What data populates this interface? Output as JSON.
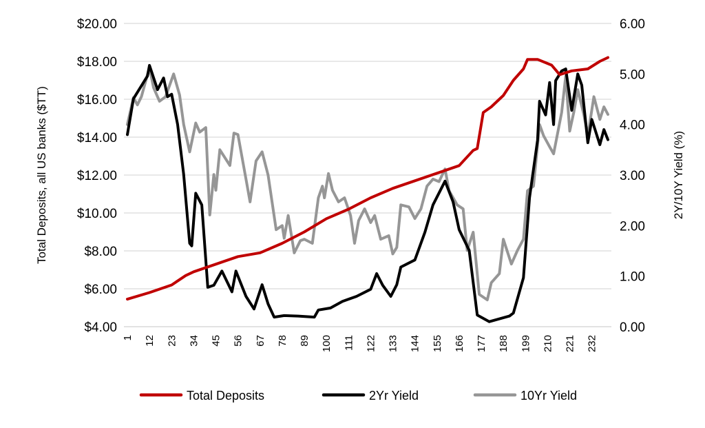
{
  "chart_data": {
    "type": "line",
    "title": "",
    "xlabel": "",
    "ylabel_left": "Total Deposits, all US banks ($TT)",
    "ylabel_right": "2Y/10Y Yield (%)",
    "x_ticks": [
      "1",
      "12",
      "23",
      "34",
      "45",
      "56",
      "67",
      "78",
      "89",
      "100",
      "111",
      "122",
      "133",
      "144",
      "155",
      "166",
      "177",
      "188",
      "199",
      "210",
      "221",
      "232"
    ],
    "xlim": [
      1,
      240
    ],
    "ylim_left": [
      4,
      20
    ],
    "ylim_right": [
      0,
      6
    ],
    "y_ticks_left": [
      "$4.00",
      "$6.00",
      "$8.00",
      "$10.00",
      "$12.00",
      "$14.00",
      "$16.00",
      "$18.00",
      "$20.00"
    ],
    "y_ticks_right": [
      "0.00",
      "1.00",
      "2.00",
      "3.00",
      "4.00",
      "5.00",
      "6.00"
    ],
    "grid": true,
    "legend_position": "bottom",
    "series": [
      {
        "name": "Total Deposits",
        "axis": "left",
        "color": "#C00000",
        "points": [
          [
            1,
            5.45
          ],
          [
            12,
            5.8
          ],
          [
            23,
            6.2
          ],
          [
            30,
            6.7
          ],
          [
            34,
            6.9
          ],
          [
            45,
            7.3
          ],
          [
            56,
            7.7
          ],
          [
            67,
            7.9
          ],
          [
            78,
            8.4
          ],
          [
            89,
            9.0
          ],
          [
            100,
            9.7
          ],
          [
            111,
            10.2
          ],
          [
            122,
            10.8
          ],
          [
            133,
            11.3
          ],
          [
            144,
            11.7
          ],
          [
            155,
            12.1
          ],
          [
            166,
            12.5
          ],
          [
            173,
            13.3
          ],
          [
            175,
            13.4
          ],
          [
            178,
            15.3
          ],
          [
            182,
            15.6
          ],
          [
            188,
            16.2
          ],
          [
            193,
            17.0
          ],
          [
            198,
            17.6
          ],
          [
            200,
            18.1
          ],
          [
            205,
            18.1
          ],
          [
            212,
            17.8
          ],
          [
            216,
            17.3
          ],
          [
            222,
            17.5
          ],
          [
            230,
            17.6
          ],
          [
            236,
            18.0
          ],
          [
            240,
            18.2
          ]
        ]
      },
      {
        "name": "2Yr Yield",
        "axis": "right",
        "color": "#000000",
        "points": [
          [
            1,
            3.8
          ],
          [
            4,
            4.51
          ],
          [
            11,
            4.96
          ],
          [
            12,
            5.17
          ],
          [
            16,
            4.69
          ],
          [
            19,
            4.92
          ],
          [
            21,
            4.55
          ],
          [
            23,
            4.6
          ],
          [
            26,
            4.0
          ],
          [
            29,
            3.01
          ],
          [
            32,
            1.65
          ],
          [
            33,
            1.6
          ],
          [
            35,
            2.64
          ],
          [
            38,
            2.41
          ],
          [
            41,
            0.78
          ],
          [
            44,
            0.82
          ],
          [
            48,
            1.1
          ],
          [
            53,
            0.69
          ],
          [
            55,
            1.1
          ],
          [
            56,
            1.0
          ],
          [
            60,
            0.6
          ],
          [
            64,
            0.35
          ],
          [
            68,
            0.83
          ],
          [
            71,
            0.45
          ],
          [
            74,
            0.19
          ],
          [
            79,
            0.22
          ],
          [
            86,
            0.21
          ],
          [
            94,
            0.19
          ],
          [
            96,
            0.33
          ],
          [
            102,
            0.37
          ],
          [
            108,
            0.5
          ],
          [
            115,
            0.6
          ],
          [
            122,
            0.74
          ],
          [
            125,
            1.05
          ],
          [
            128,
            0.82
          ],
          [
            132,
            0.6
          ],
          [
            135,
            0.83
          ],
          [
            137,
            1.18
          ],
          [
            144,
            1.32
          ],
          [
            149,
            1.87
          ],
          [
            153,
            2.41
          ],
          [
            159,
            2.88
          ],
          [
            163,
            2.47
          ],
          [
            166,
            1.92
          ],
          [
            171,
            1.51
          ],
          [
            175,
            0.23
          ],
          [
            181,
            0.1
          ],
          [
            191,
            0.21
          ],
          [
            193,
            0.27
          ],
          [
            198,
            0.97
          ],
          [
            201,
            2.55
          ],
          [
            205,
            3.69
          ],
          [
            206,
            4.46
          ],
          [
            209,
            4.19
          ],
          [
            211,
            4.83
          ],
          [
            213,
            4.0
          ],
          [
            214,
            4.87
          ],
          [
            217,
            5.06
          ],
          [
            219,
            5.1
          ],
          [
            222,
            4.28
          ],
          [
            225,
            5.0
          ],
          [
            227,
            4.78
          ],
          [
            230,
            3.64
          ],
          [
            232,
            4.1
          ],
          [
            236,
            3.6
          ],
          [
            238,
            3.9
          ],
          [
            240,
            3.7
          ]
        ]
      },
      {
        "name": "10Yr Yield",
        "axis": "right",
        "color": "#969696",
        "points": [
          [
            1,
            4.0
          ],
          [
            4,
            4.53
          ],
          [
            6,
            4.39
          ],
          [
            8,
            4.55
          ],
          [
            12,
            5.13
          ],
          [
            14,
            4.73
          ],
          [
            17,
            4.46
          ],
          [
            20,
            4.55
          ],
          [
            24,
            5.0
          ],
          [
            27,
            4.58
          ],
          [
            29,
            4.0
          ],
          [
            32,
            3.46
          ],
          [
            35,
            4.03
          ],
          [
            37,
            3.85
          ],
          [
            40,
            3.94
          ],
          [
            42,
            2.21
          ],
          [
            44,
            3.01
          ],
          [
            45,
            2.7
          ],
          [
            47,
            3.5
          ],
          [
            52,
            3.19
          ],
          [
            54,
            3.83
          ],
          [
            56,
            3.8
          ],
          [
            60,
            2.92
          ],
          [
            62,
            2.47
          ],
          [
            65,
            3.28
          ],
          [
            68,
            3.46
          ],
          [
            71,
            3.0
          ],
          [
            75,
            1.92
          ],
          [
            78,
            2.0
          ],
          [
            79,
            1.75
          ],
          [
            81,
            2.2
          ],
          [
            84,
            1.46
          ],
          [
            87,
            1.7
          ],
          [
            89,
            1.73
          ],
          [
            93,
            1.65
          ],
          [
            96,
            2.55
          ],
          [
            98,
            2.78
          ],
          [
            99,
            2.55
          ],
          [
            101,
            3.03
          ],
          [
            103,
            2.7
          ],
          [
            106,
            2.47
          ],
          [
            109,
            2.55
          ],
          [
            112,
            2.2
          ],
          [
            114,
            1.65
          ],
          [
            116,
            2.1
          ],
          [
            119,
            2.33
          ],
          [
            122,
            2.06
          ],
          [
            124,
            2.2
          ],
          [
            127,
            1.73
          ],
          [
            131,
            1.8
          ],
          [
            133,
            1.44
          ],
          [
            135,
            1.57
          ],
          [
            137,
            2.41
          ],
          [
            141,
            2.37
          ],
          [
            144,
            2.14
          ],
          [
            147,
            2.33
          ],
          [
            150,
            2.78
          ],
          [
            153,
            2.92
          ],
          [
            156,
            2.87
          ],
          [
            159,
            3.12
          ],
          [
            161,
            2.69
          ],
          [
            165,
            2.41
          ],
          [
            168,
            2.33
          ],
          [
            170,
            1.51
          ],
          [
            173,
            1.87
          ],
          [
            176,
            0.64
          ],
          [
            180,
            0.53
          ],
          [
            182,
            0.87
          ],
          [
            186,
            1.05
          ],
          [
            188,
            1.73
          ],
          [
            192,
            1.24
          ],
          [
            195,
            1.51
          ],
          [
            198,
            1.73
          ],
          [
            200,
            2.69
          ],
          [
            203,
            2.78
          ],
          [
            206,
            4.0
          ],
          [
            208,
            3.78
          ],
          [
            211,
            3.56
          ],
          [
            213,
            3.42
          ],
          [
            217,
            4.24
          ],
          [
            219,
            4.96
          ],
          [
            221,
            3.87
          ],
          [
            223,
            4.24
          ],
          [
            225,
            4.69
          ],
          [
            228,
            4.2
          ],
          [
            230,
            3.78
          ],
          [
            233,
            4.55
          ],
          [
            236,
            4.1
          ],
          [
            238,
            4.35
          ],
          [
            240,
            4.2
          ]
        ]
      }
    ]
  }
}
